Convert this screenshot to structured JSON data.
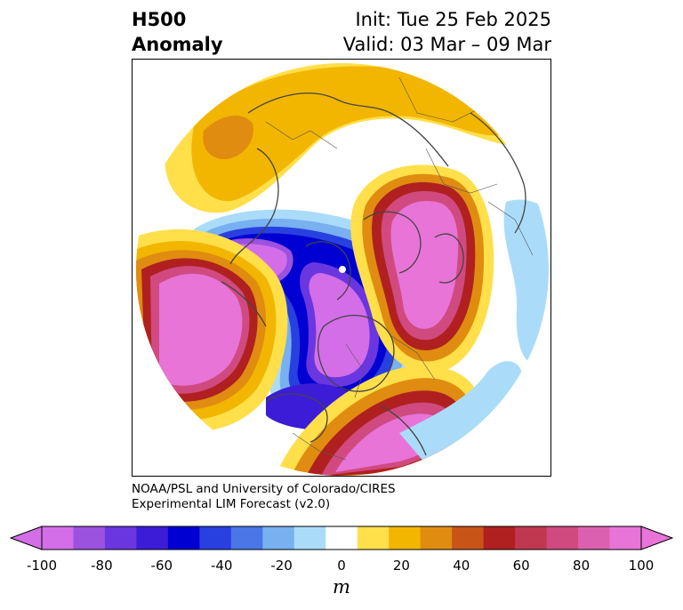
{
  "title": {
    "left_line1": "H500",
    "left_line2": "Anomaly",
    "right_line1": "Init: Tue 25 Feb 2025",
    "right_line2": "Valid: 03 Mar – 09 Mar"
  },
  "credit": {
    "line1": "NOAA/PSL and University of Colorado/CIRES",
    "line2": "Experimental LIM Forecast (v2.0)"
  },
  "colorbar": {
    "unit": "m",
    "tick_labels": [
      "-100",
      "-80",
      "-60",
      "-40",
      "-20",
      "0",
      "20",
      "40",
      "60",
      "80",
      "100"
    ],
    "bins": [
      {
        "range": "-100 to -90",
        "color": "#d36ee8"
      },
      {
        "range": "-90 to -80",
        "color": "#9a52df"
      },
      {
        "range": "-80 to -70",
        "color": "#6a36df"
      },
      {
        "range": "-70 to -60",
        "color": "#3c1cd6"
      },
      {
        "range": "-60 to -50",
        "color": "#0000d2"
      },
      {
        "range": "-50 to -40",
        "color": "#2840e0"
      },
      {
        "range": "-40 to -30",
        "color": "#4a76e8"
      },
      {
        "range": "-30 to -20",
        "color": "#78b0f0"
      },
      {
        "range": "-20 to -10",
        "color": "#aadcfa"
      },
      {
        "range": "-10 to 10",
        "color": "#ffffff"
      },
      {
        "range": "10 to 20",
        "color": "#ffdf4a"
      },
      {
        "range": "20 to 30",
        "color": "#f2b600"
      },
      {
        "range": "30 to 40",
        "color": "#e08c10"
      },
      {
        "range": "40 to 50",
        "color": "#c85418"
      },
      {
        "range": "50 to 60",
        "color": "#b02020"
      },
      {
        "range": "60 to 70",
        "color": "#c03850"
      },
      {
        "range": "70 to 80",
        "color": "#d04a80"
      },
      {
        "range": "80 to 90",
        "color": "#dc60b0"
      },
      {
        "range": "90 to 100",
        "color": "#e874d8"
      }
    ],
    "extend_low_color": "#d36ee8",
    "extend_high_color": "#e874d8"
  },
  "map": {
    "projection": "north polar stereographic",
    "field": "500 hPa geopotential height anomaly",
    "features": [
      {
        "name": "North Pacific",
        "sign": "positive",
        "peak": "100"
      },
      {
        "name": "Northeast Pacific / Western North America",
        "sign": "negative",
        "peak": "-100"
      },
      {
        "name": "Eastern North America",
        "sign": "positive",
        "peak": "100"
      },
      {
        "name": "Northern Europe",
        "sign": "positive",
        "peak": "100"
      },
      {
        "name": "Eastern Siberia / Arctic",
        "sign": "negative",
        "peak": "-100"
      },
      {
        "name": "Western Eurasia",
        "sign": "positive",
        "peak": "40"
      },
      {
        "name": "Central Asia",
        "sign": "negative",
        "peak": "-20"
      }
    ]
  }
}
